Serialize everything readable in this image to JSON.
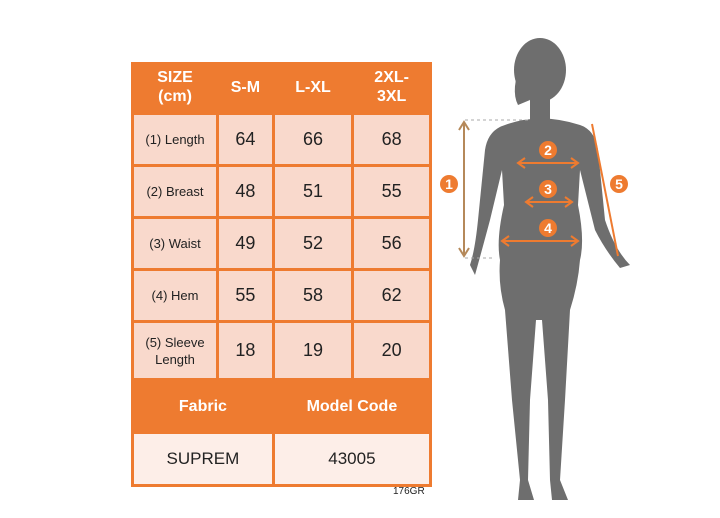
{
  "table": {
    "headers": [
      "SIZE\n(cm)",
      "S-M",
      "L-XL",
      "2XL-\n3XL"
    ],
    "header_lines": [
      [
        "SIZE",
        "(cm)"
      ],
      [
        "S-M"
      ],
      [
        "L-XL"
      ],
      [
        "2XL-",
        "3XL"
      ]
    ],
    "rows": [
      {
        "label": "(1) Length",
        "values": [
          "64",
          "66",
          "68"
        ]
      },
      {
        "label": "(2) Breast",
        "values": [
          "48",
          "51",
          "55"
        ]
      },
      {
        "label": "(3) Waist",
        "values": [
          "49",
          "52",
          "56"
        ]
      },
      {
        "label": "(4) Hem",
        "values": [
          "55",
          "58",
          "62"
        ]
      },
      {
        "label_lines": [
          "(5) Sleeve",
          "Length"
        ],
        "values": [
          "18",
          "19",
          "20"
        ]
      }
    ],
    "fabric_label": "Fabric",
    "model_code_label": "Model Code",
    "fabric_value": "SUPREM",
    "model_code_value": "43005"
  },
  "code": "176GR",
  "markers": [
    "1",
    "2",
    "3",
    "4",
    "5"
  ],
  "colors": {
    "orange": "#ee7b30",
    "cell": "#f9d9cc",
    "silhouette": "#6e6e6e"
  }
}
